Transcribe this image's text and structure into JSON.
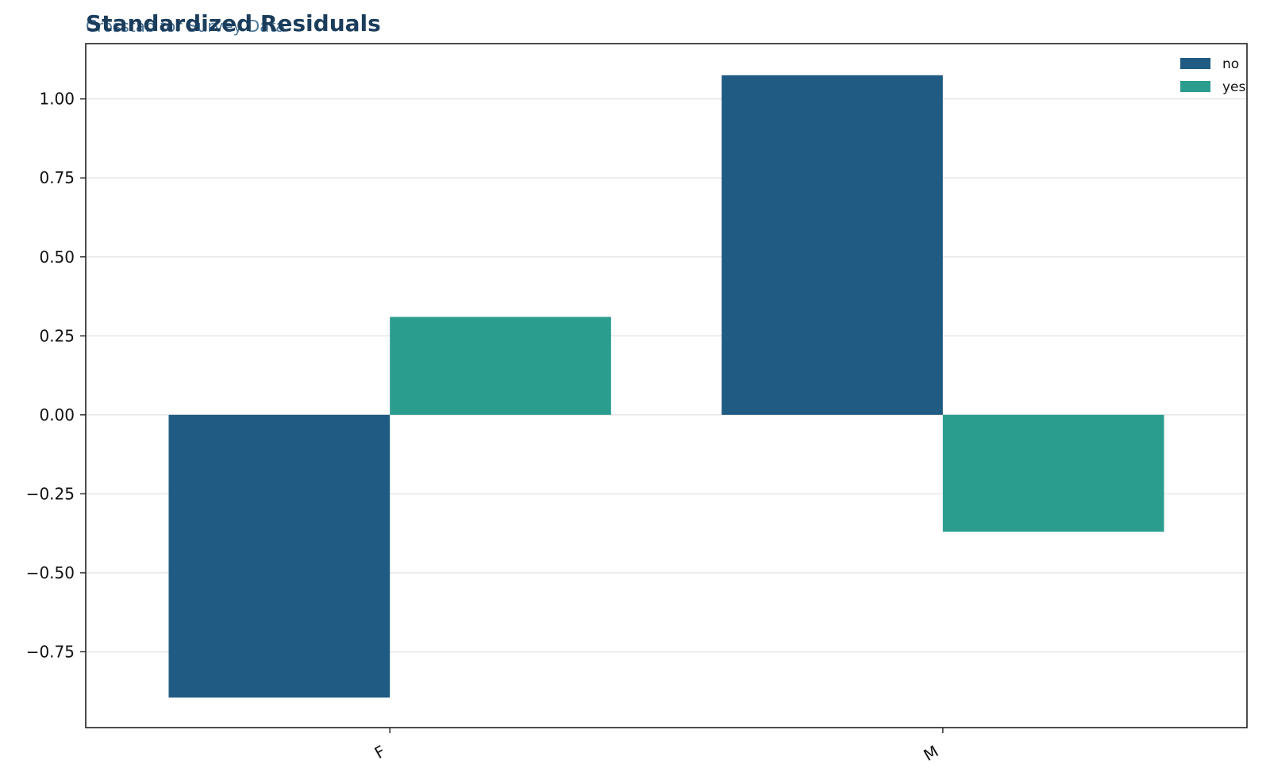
{
  "chart_data": {
    "type": "bar",
    "title": "Standardized Residuals",
    "subtitle": "Crosstab for Survey Data",
    "xlabel": "",
    "ylabel": "",
    "categories": [
      "F",
      "M"
    ],
    "series": [
      {
        "name": "no",
        "values": [
          -0.895,
          1.075
        ],
        "color": "#1f5b82"
      },
      {
        "name": "yes",
        "values": [
          0.31,
          -0.37
        ],
        "color": "#2a9d8f"
      }
    ],
    "ylim": [
      -0.99,
      1.175
    ],
    "yticks": [
      -0.75,
      -0.5,
      -0.25,
      0.0,
      0.25,
      0.5,
      0.75,
      1.0
    ],
    "ytick_labels": [
      "−0.75",
      "−0.50",
      "−0.25",
      "0.00",
      "0.25",
      "0.50",
      "0.75",
      "1.00"
    ],
    "grid": "horizontal",
    "legend_position": "top-right"
  }
}
